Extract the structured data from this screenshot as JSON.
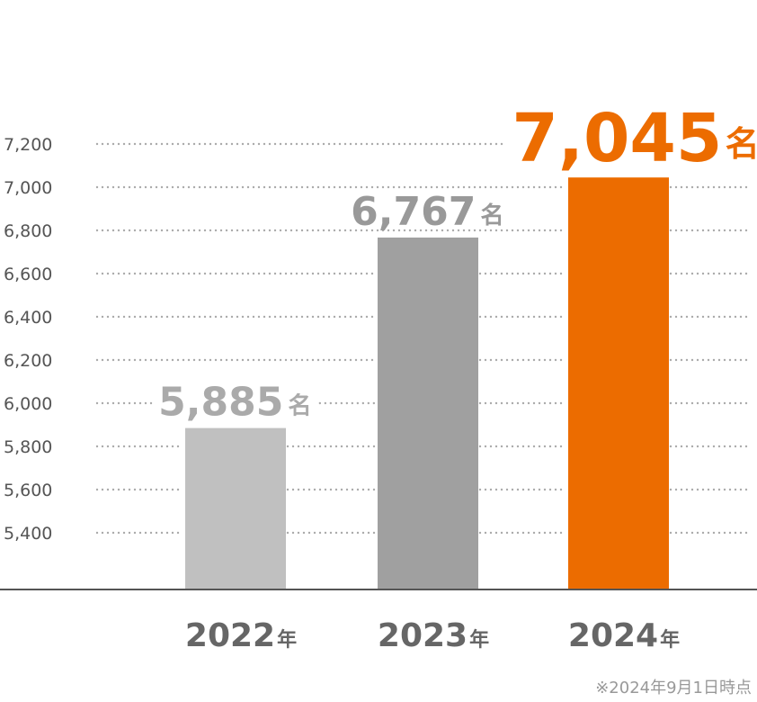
{
  "chart_data": {
    "type": "bar",
    "categories": [
      "2022",
      "2023",
      "2024"
    ],
    "category_suffix": "年",
    "values": [
      5885,
      6767,
      7045
    ],
    "value_labels": [
      "5,885",
      "6,767",
      "7,045"
    ],
    "value_unit": "名",
    "ytick_labels": [
      "5,400",
      "5,600",
      "5,800",
      "6,000",
      "6,200",
      "6,400",
      "6,600",
      "6,800",
      "7,000",
      "7,200"
    ],
    "yticks": [
      5400,
      5600,
      5800,
      6000,
      6200,
      6400,
      6600,
      6800,
      7000,
      7200
    ],
    "ylim": [
      4900,
      7200
    ],
    "grid": true,
    "title": "",
    "xlabel": "",
    "ylabel": "",
    "bar_colors": [
      "#c0c0c0",
      "#a0a0a0",
      "#ec6c00"
    ],
    "label_colors": [
      "#aaaaaa",
      "#999999",
      "#ec6c00"
    ],
    "footnote": "※2024年9月1日時点"
  }
}
